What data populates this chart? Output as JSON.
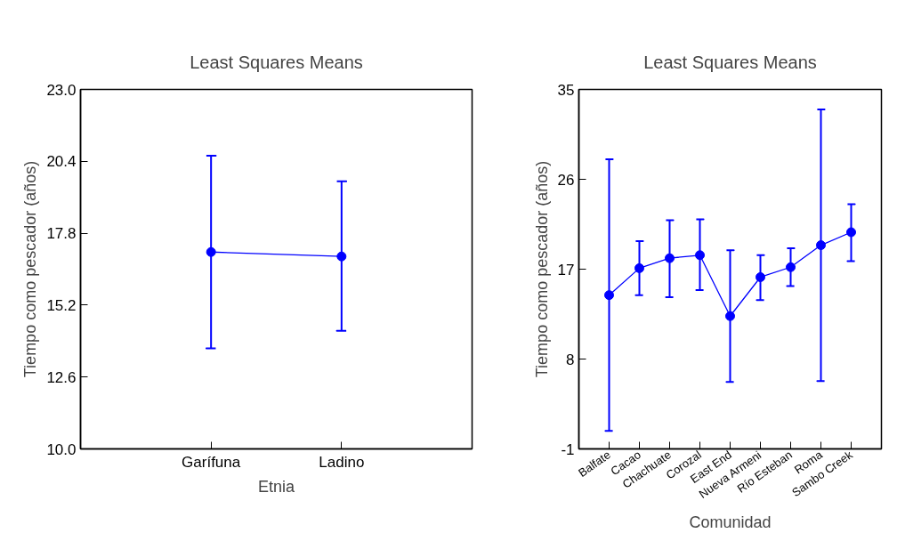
{
  "chart_data": [
    {
      "type": "line",
      "title": "Least Squares Means",
      "xlabel": "Etnia",
      "ylabel": "Tiempo como pescador (años)",
      "categories": [
        "Garífuna",
        "Ladino"
      ],
      "series": [
        {
          "color": "#0000ff",
          "values": [
            17.12,
            16.96
          ],
          "errors": [
            [
              13.64,
              20.6
            ],
            [
              14.27,
              19.68
            ]
          ]
        }
      ],
      "ylim": [
        10,
        23
      ],
      "yticks": [
        {
          "value": 10,
          "label": "10.0"
        },
        {
          "value": 12.6,
          "label": "12.6"
        },
        {
          "value": 15.2,
          "label": "15.2"
        },
        {
          "value": 17.8,
          "label": "17.8"
        },
        {
          "value": 20.4,
          "label": "20.4"
        },
        {
          "value": 23,
          "label": "23.0"
        }
      ],
      "marker": "circle",
      "grid": false
    },
    {
      "type": "line",
      "title": "Least Squares Means",
      "xlabel": "Comunidad",
      "ylabel": "Tiempo como pescador (años)",
      "categories": [
        "Balfate",
        "Cacao",
        "Chachuate",
        "Corozal",
        "East End",
        "Nueva Armeni",
        "Río Esteban",
        "Roma",
        "Sambo Creek"
      ],
      "series": [
        {
          "color": "#0000ff",
          "values": [
            14.4,
            17.1,
            18.1,
            18.4,
            12.3,
            16.2,
            17.2,
            19.4,
            20.7
          ],
          "errors": [
            [
              0.8,
              28.0
            ],
            [
              14.4,
              19.8
            ],
            [
              14.2,
              21.9
            ],
            [
              14.9,
              22.0
            ],
            [
              5.7,
              18.9
            ],
            [
              13.9,
              18.4
            ],
            [
              15.3,
              19.1
            ],
            [
              5.8,
              33.0
            ],
            [
              17.8,
              23.5
            ]
          ]
        }
      ],
      "ylim": [
        -1,
        35
      ],
      "yticks": [
        -1,
        8,
        17,
        26,
        35
      ],
      "marker": "circle",
      "grid": false
    }
  ]
}
